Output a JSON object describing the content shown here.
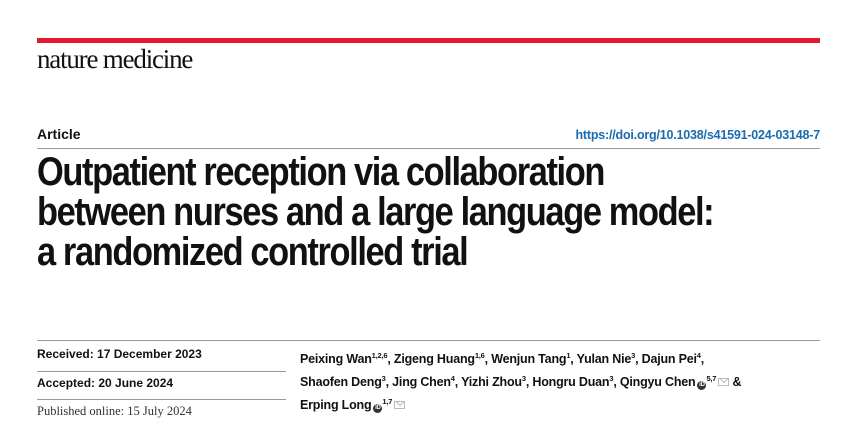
{
  "journal": {
    "name": "nature medicine",
    "brand_color": "#e3192d"
  },
  "article_type": "Article",
  "doi": "https://doi.org/10.1038/s41591-024-03148-7",
  "title_lines": [
    "Outpatient reception via collaboration",
    "between nurses and a large language model:",
    "a randomized controlled trial"
  ],
  "dates": {
    "received": "Received: 17 December 2023",
    "accepted": "Accepted: 20 June 2024",
    "published": "Published online: 15 July 2024"
  },
  "authors": [
    {
      "name": "Peixing Wan",
      "aff": "1,2,6",
      "sep": ", "
    },
    {
      "name": "Zigeng Huang",
      "aff": "1,6",
      "sep": ", "
    },
    {
      "name": "Wenjun Tang",
      "aff": "1",
      "sep": ", "
    },
    {
      "name": "Yulan Nie",
      "aff": "3",
      "sep": ", "
    },
    {
      "name": "Dajun Pei",
      "aff": "4",
      "sep": ", "
    },
    {
      "name": "Shaofen Deng",
      "aff": "3",
      "sep": ", "
    },
    {
      "name": "Jing Chen",
      "aff": "4",
      "sep": ", "
    },
    {
      "name": "Yizhi Zhou",
      "aff": "3",
      "sep": ", "
    },
    {
      "name": "Hongru Duan",
      "aff": "3",
      "sep": ", "
    },
    {
      "name": "Qingyu Chen",
      "aff": "5,7",
      "orcid": true,
      "email": true,
      "sep": " & "
    },
    {
      "name": "Erping Long",
      "aff": "1,7",
      "orcid": true,
      "email": true,
      "sep": ""
    }
  ],
  "icons": {
    "orcid": "orcid-icon",
    "email": "envelope-icon"
  }
}
